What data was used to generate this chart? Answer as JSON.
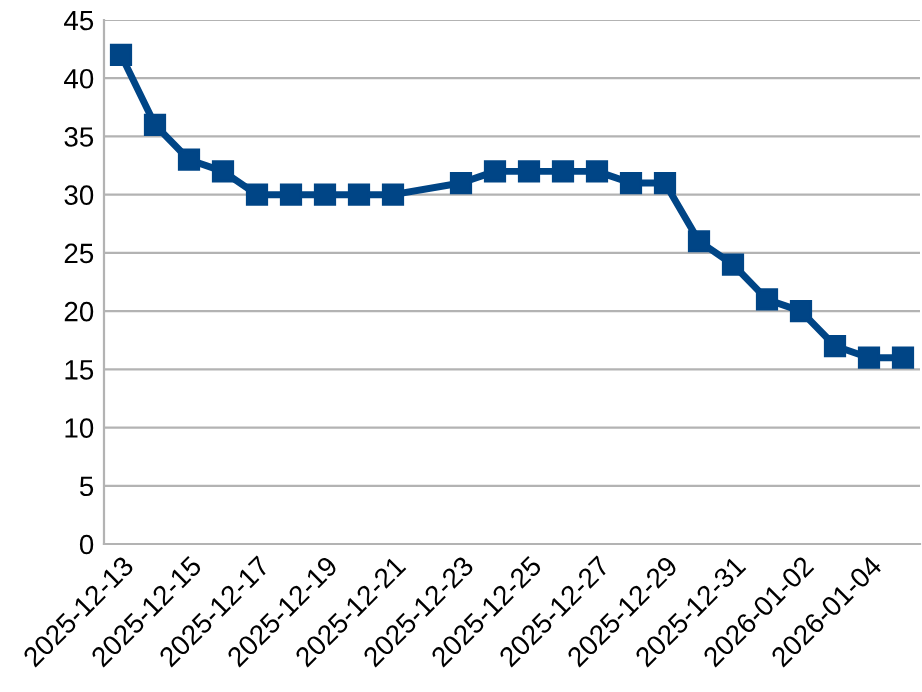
{
  "chart_data": {
    "type": "line",
    "categories": [
      "2025-12-13",
      null,
      "2025-12-15",
      null,
      "2025-12-17",
      null,
      "2025-12-19",
      null,
      "2025-12-21",
      null,
      "2025-12-23",
      null,
      "2025-12-25",
      null,
      "2025-12-27",
      null,
      "2025-12-29",
      null,
      "2025-12-31",
      null,
      "2026-01-02",
      null,
      "2026-01-04",
      null
    ],
    "series": [
      {
        "color": "#004586",
        "values": [
          42,
          36,
          33,
          32,
          30,
          30,
          30,
          30,
          30,
          null,
          31,
          32,
          32,
          32,
          32,
          31,
          31,
          26,
          24,
          21,
          20,
          17,
          16,
          16
        ]
      }
    ],
    "ylim": [
      0,
      45
    ],
    "yticks": [
      0,
      5,
      10,
      15,
      20,
      25,
      30,
      35,
      40,
      45
    ],
    "grid": "y",
    "marker": "square",
    "line_style": "solid"
  }
}
